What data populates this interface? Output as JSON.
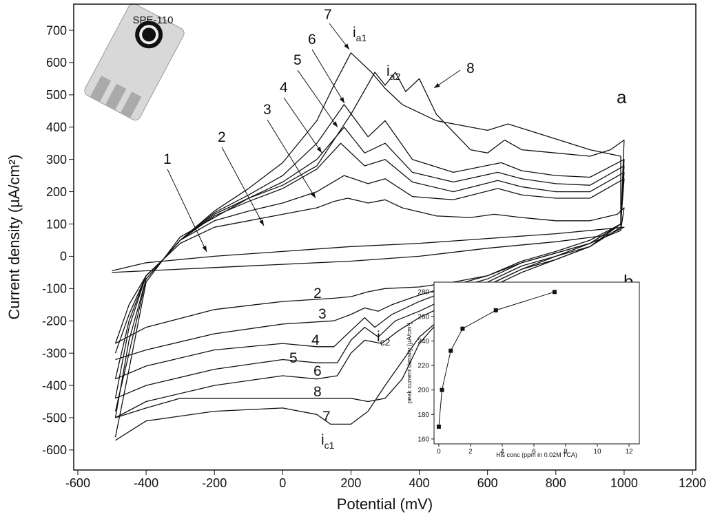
{
  "chart_data": [
    {
      "type": "line",
      "xlabel": "Potential (mV)",
      "ylabel": "Current density (µA/cm²)",
      "xlim": [
        -612,
        1210
      ],
      "ylim": [
        -662,
        781
      ],
      "xticks": [
        -600,
        -400,
        -200,
        0,
        200,
        400,
        600,
        800,
        1000,
        1200
      ],
      "yticks": [
        -600,
        -500,
        -400,
        -300,
        -200,
        -100,
        0,
        100,
        200,
        300,
        400,
        500,
        600,
        700
      ],
      "color": "#111111",
      "image_label": "SPE-110",
      "annotations": [
        {
          "text": "1"
        },
        {
          "text": "2"
        },
        {
          "text": "3"
        },
        {
          "text": "4"
        },
        {
          "text": "5"
        },
        {
          "text": "6"
        },
        {
          "text": "7"
        },
        {
          "text": "8"
        },
        {
          "text": "i",
          "sub": "a1"
        },
        {
          "text": "i",
          "sub": "a2"
        },
        {
          "text": "a"
        },
        {
          "text": "b"
        },
        {
          "text": "2"
        },
        {
          "text": "3"
        },
        {
          "text": "4"
        },
        {
          "text": "5"
        },
        {
          "text": "6"
        },
        {
          "text": "8"
        },
        {
          "text": "7"
        },
        {
          "text": "i",
          "sub": "c1"
        },
        {
          "text": "i",
          "sub": "c2"
        }
      ],
      "series": [
        {
          "x": [
            -500,
            -400,
            -200,
            0,
            200,
            400,
            600,
            800,
            1000,
            950,
            800,
            600,
            400,
            200,
            0,
            -200,
            -400,
            -500
          ],
          "values": [
            -45,
            -20,
            0,
            15,
            30,
            40,
            55,
            70,
            90,
            65,
            45,
            25,
            0,
            -15,
            -25,
            -35,
            -45,
            -50
          ]
        },
        {
          "x": [
            -490,
            -450,
            -400,
            -350,
            -300,
            -200,
            -100,
            0,
            100,
            150,
            190,
            250,
            300,
            350,
            450,
            550,
            620,
            700,
            800,
            900,
            980,
            1000,
            990,
            900,
            800,
            700,
            600,
            500,
            400,
            300,
            250,
            200,
            150,
            0,
            -200,
            -400,
            -490
          ],
          "values": [
            -270,
            -150,
            -60,
            -10,
            40,
            90,
            110,
            130,
            150,
            170,
            180,
            165,
            175,
            150,
            125,
            120,
            130,
            120,
            110,
            110,
            130,
            150,
            80,
            40,
            10,
            -20,
            -60,
            -80,
            -95,
            -100,
            -110,
            -125,
            -130,
            -140,
            -165,
            -220,
            -270
          ]
        },
        {
          "x": [
            -490,
            -450,
            -400,
            -350,
            -300,
            -200,
            -100,
            0,
            100,
            180,
            250,
            300,
            380,
            500,
            630,
            700,
            800,
            900,
            1000,
            990,
            900,
            800,
            700,
            600,
            500,
            400,
            320,
            280,
            240,
            200,
            150,
            0,
            -200,
            -400,
            -490
          ],
          "values": [
            -300,
            -180,
            -60,
            -10,
            50,
            110,
            140,
            165,
            200,
            250,
            225,
            240,
            185,
            175,
            210,
            190,
            180,
            180,
            240,
            100,
            50,
            15,
            -15,
            -60,
            -90,
            -120,
            -150,
            -170,
            -160,
            -180,
            -200,
            -210,
            -240,
            -290,
            -320
          ]
        },
        {
          "x": [
            -490,
            -450,
            -400,
            -350,
            -300,
            -200,
            -100,
            0,
            100,
            170,
            240,
            300,
            380,
            500,
            630,
            700,
            800,
            900,
            1000,
            990,
            900,
            800,
            700,
            600,
            500,
            400,
            320,
            270,
            240,
            200,
            150,
            100,
            0,
            -200,
            -400,
            -490
          ],
          "values": [
            -380,
            -200,
            -60,
            -10,
            50,
            125,
            170,
            210,
            270,
            350,
            280,
            300,
            230,
            200,
            235,
            215,
            200,
            200,
            260,
            100,
            40,
            10,
            -20,
            -70,
            -100,
            -140,
            -180,
            -220,
            -190,
            -230,
            -280,
            -280,
            -270,
            -290,
            -340,
            -380
          ]
        },
        {
          "x": [
            -490,
            -450,
            -400,
            -350,
            -300,
            -200,
            -100,
            0,
            100,
            180,
            240,
            300,
            380,
            500,
            630,
            700,
            800,
            900,
            1000,
            990,
            900,
            800,
            700,
            600,
            500,
            400,
            330,
            280,
            240,
            200,
            160,
            100,
            0,
            -200,
            -400,
            -490
          ],
          "values": [
            -440,
            -220,
            -60,
            -10,
            50,
            130,
            180,
            230,
            300,
            400,
            320,
            350,
            260,
            230,
            260,
            240,
            225,
            220,
            280,
            100,
            40,
            0,
            -30,
            -80,
            -120,
            -170,
            -200,
            -250,
            -220,
            -260,
            -330,
            -330,
            -320,
            -350,
            -400,
            -440
          ]
        },
        {
          "x": [
            -490,
            -450,
            -400,
            -350,
            -300,
            -200,
            -100,
            0,
            100,
            180,
            250,
            300,
            380,
            500,
            640,
            700,
            800,
            900,
            1000,
            990,
            900,
            800,
            700,
            600,
            500,
            400,
            340,
            290,
            240,
            200,
            160,
            100,
            0,
            -200,
            -400,
            -490
          ],
          "values": [
            -500,
            -260,
            -70,
            -10,
            50,
            135,
            190,
            250,
            350,
            470,
            370,
            420,
            300,
            260,
            290,
            265,
            250,
            245,
            300,
            90,
            30,
            -10,
            -40,
            -90,
            -140,
            -190,
            -230,
            -270,
            -260,
            -300,
            -370,
            -380,
            -370,
            -400,
            -450,
            -500
          ]
        },
        {
          "x": [
            -490,
            -450,
            -400,
            -350,
            -300,
            -200,
            -100,
            0,
            100,
            150,
            200,
            260,
            300,
            350,
            450,
            600,
            660,
            750,
            900,
            990,
            990,
            900,
            800,
            700,
            600,
            500,
            400,
            300,
            250,
            200,
            140,
            100,
            0,
            -200,
            -400,
            -490
          ],
          "values": [
            -560,
            -350,
            -80,
            -10,
            50,
            140,
            210,
            290,
            420,
            530,
            630,
            570,
            520,
            470,
            420,
            390,
            410,
            380,
            330,
            310,
            100,
            30,
            -10,
            -50,
            -100,
            -160,
            -250,
            -400,
            -480,
            -520,
            -520,
            -490,
            -470,
            -480,
            -510,
            -570
          ]
        },
        {
          "x": [
            -490,
            -450,
            -400,
            -350,
            -300,
            -200,
            -100,
            0,
            100,
            200,
            270,
            300,
            330,
            360,
            400,
            450,
            550,
            600,
            650,
            700,
            800,
            900,
            960,
            1000,
            990,
            900,
            800,
            700,
            600,
            500,
            400,
            350,
            300,
            250,
            200,
            100,
            0,
            -200,
            -300,
            -400,
            -490
          ],
          "values": [
            -480,
            -300,
            -70,
            -10,
            60,
            120,
            180,
            220,
            280,
            440,
            570,
            530,
            570,
            510,
            550,
            440,
            330,
            320,
            360,
            330,
            320,
            310,
            330,
            360,
            100,
            30,
            0,
            -40,
            -90,
            -150,
            -270,
            -380,
            -440,
            -450,
            -440,
            -440,
            -440,
            -440,
            -440,
            -470,
            -500
          ]
        }
      ]
    },
    {
      "type": "line",
      "xlabel": "His conc (ppm in 0.02M TCA)",
      "ylabel": "peak current density (µA/cm²)",
      "xlim": [
        -0.3,
        12.65
      ],
      "ylim": [
        156,
        288
      ],
      "xticks": [
        0,
        2,
        4,
        6,
        8,
        10,
        12
      ],
      "yticks": [
        160,
        180,
        200,
        220,
        240,
        260,
        280
      ],
      "color": "#111111",
      "markers": true,
      "series": [
        {
          "x": [
            0,
            0.2,
            0.75,
            1.5,
            3.6,
            7.3
          ],
          "values": [
            170,
            200,
            232,
            250,
            265,
            280
          ]
        }
      ]
    }
  ]
}
